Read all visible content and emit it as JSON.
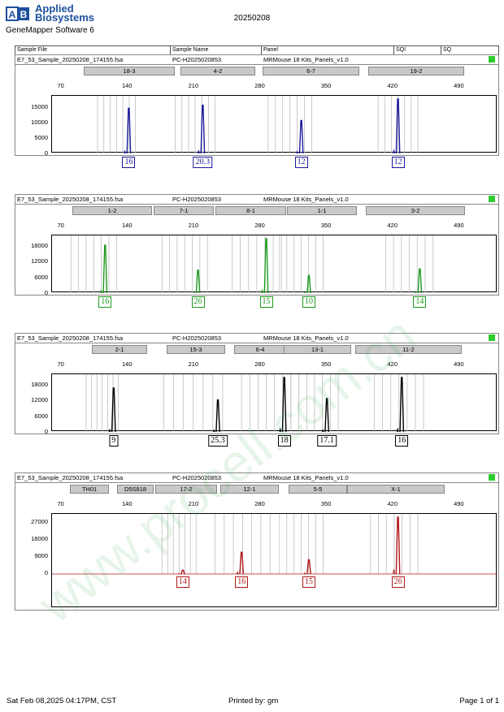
{
  "header": {
    "brand_line1": "Applied",
    "brand_line2": "Biosystems",
    "software": "GeneMapper Software 6",
    "run_date": "20250208"
  },
  "table_head": {
    "sample_file": "Sample File",
    "sample_name": "Sample Name",
    "panel": "Panel",
    "sqi": "SQI",
    "sq": "SQ"
  },
  "panels": [
    {
      "file": "E7_53_Sample_20250208_174155.fsa",
      "name": "PC-H2025020853",
      "panel": "MRMouse 18 Kits_Panels_v1.0",
      "color": "#1a1a9c",
      "markers": [
        "18-3",
        "4-2",
        "6-7",
        "19-2"
      ],
      "scale": [
        "70",
        "140",
        "210",
        "280",
        "350",
        "420",
        "490"
      ],
      "yticks": [
        "0",
        "5000",
        "10000",
        "15000"
      ],
      "alleles": [
        "16",
        "20.3",
        "12",
        "12"
      ]
    },
    {
      "file": "E7_53_Sample_20250208_174155.fsa",
      "name": "PC-H2025020853",
      "panel": "MRMouse 18 Kits_Panels_v1.0",
      "color": "#1e9a1e",
      "markers": [
        "1-2",
        "7-1",
        "8-1",
        "1-1",
        "3-2"
      ],
      "scale": [
        "70",
        "140",
        "210",
        "280",
        "350",
        "420",
        "490"
      ],
      "yticks": [
        "0",
        "6000",
        "12000",
        "18000"
      ],
      "alleles": [
        "16",
        "26",
        "15",
        "10",
        "14"
      ]
    },
    {
      "file": "E7_53_Sample_20250208_174155.fsa",
      "name": "PC-H2025020853",
      "panel": "MRMouse 18 Kits_Panels_v1.0",
      "color": "#000000",
      "markers": [
        "2-1",
        "15-3",
        "6-4",
        "13-1",
        "11-2"
      ],
      "scale": [
        "70",
        "140",
        "210",
        "280",
        "350",
        "420",
        "490"
      ],
      "yticks": [
        "0",
        "6000",
        "12000",
        "18000"
      ],
      "alleles": [
        "9",
        "25.3",
        "18",
        "17.1",
        "16"
      ]
    },
    {
      "file": "E7_53_Sample_20250208_174155.fsa",
      "name": "PC-H2025020853",
      "panel": "MRMouse 18 Kits_Panels_v1.0",
      "color": "#b01818",
      "markers": [
        "TH01",
        "D5S818",
        "17-2",
        "12-1",
        "5-5",
        "X-1"
      ],
      "scale": [
        "70",
        "140",
        "210",
        "280",
        "350",
        "420",
        "490"
      ],
      "yticks": [
        "0",
        "9000",
        "18000",
        "27000"
      ],
      "alleles": [
        "14",
        "16",
        "15",
        "26"
      ]
    }
  ],
  "chart_data": [
    {
      "type": "line",
      "xlabel": "",
      "ylabel": "",
      "xlim": [
        60,
        530
      ],
      "ylim": [
        0,
        18000
      ],
      "series": [
        {
          "peaks_x": [
            141,
            219,
            323,
            425
          ],
          "peaks_y": [
            15000,
            16000,
            11000,
            19000
          ]
        }
      ]
    },
    {
      "type": "line",
      "xlabel": "",
      "ylabel": "",
      "xlim": [
        60,
        530
      ],
      "ylim": [
        0,
        21000
      ],
      "series": [
        {
          "peaks_x": [
            116,
            214,
            286,
            331,
            448
          ],
          "peaks_y": [
            18500,
            9000,
            21000,
            7000,
            9500
          ]
        }
      ]
    },
    {
      "type": "line",
      "xlabel": "",
      "ylabel": "",
      "xlim": [
        60,
        530
      ],
      "ylim": [
        0,
        21000
      ],
      "series": [
        {
          "peaks_x": [
            125,
            235,
            305,
            350,
            429
          ],
          "peaks_y": [
            17000,
            12500,
            21000,
            13000,
            21000
          ]
        }
      ]
    },
    {
      "type": "line",
      "xlabel": "",
      "ylabel": "",
      "xlim": [
        60,
        530
      ],
      "ylim": [
        0,
        30000
      ],
      "series": [
        {
          "peaks_x": [
            198,
            260,
            331,
            425
          ],
          "peaks_y": [
            2000,
            11500,
            7500,
            30000
          ]
        }
      ]
    }
  ],
  "footer": {
    "datetime": "Sat Feb 08,2025 04:17PM, CST",
    "printed_by": "Printed by: gm",
    "page": "Page 1 of 1"
  },
  "watermark": "www.procell.com.cn"
}
